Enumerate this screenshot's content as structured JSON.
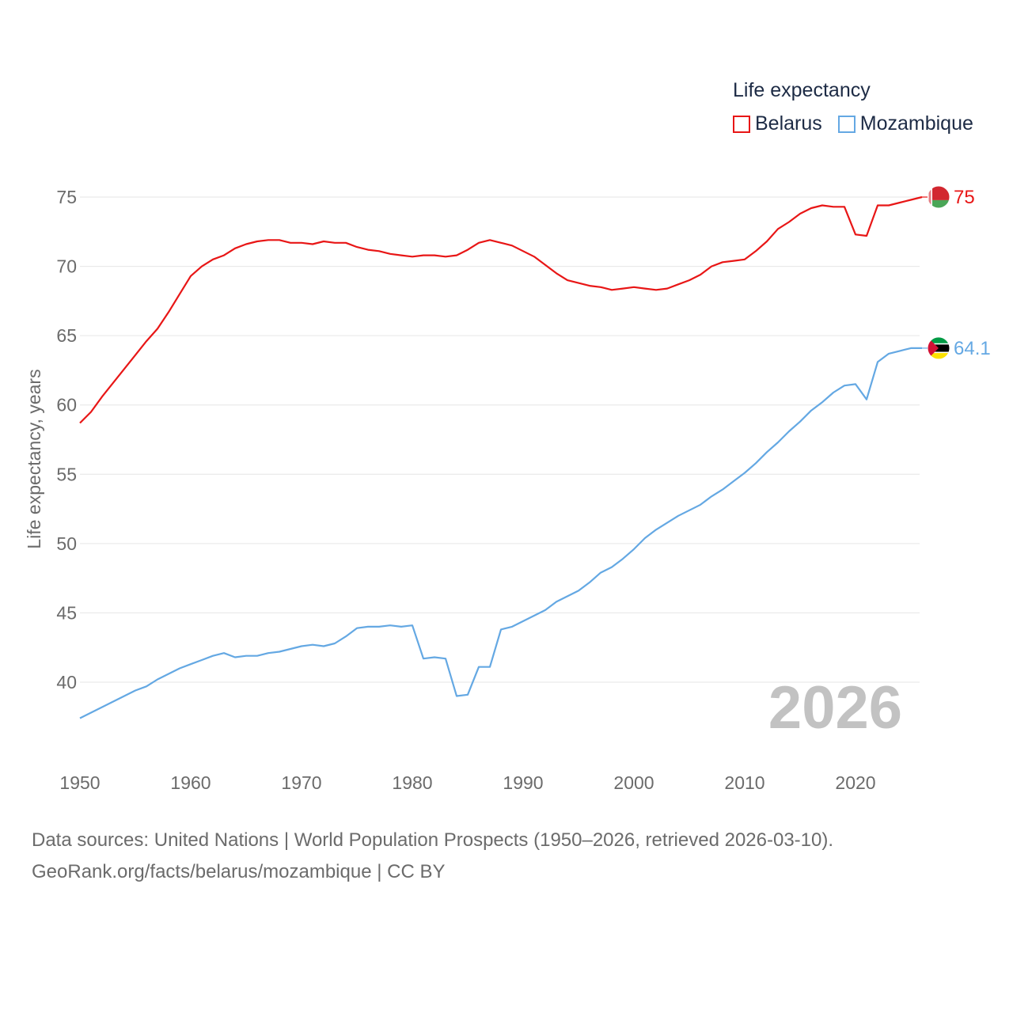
{
  "legend": {
    "title": "Life expectancy",
    "series": [
      {
        "name": "Belarus",
        "color": "#e81616"
      },
      {
        "name": "Mozambique",
        "color": "#64a8e3"
      }
    ]
  },
  "source": {
    "line1": "Data sources: United Nations | World Population Prospects (1950–2026, retrieved 2026-03-10).",
    "line2": "GeoRank.org/facts/belarus/mozambique | CC BY"
  },
  "chart_data": {
    "type": "line",
    "title": "Life expectancy",
    "xlabel": "",
    "ylabel": "Life expectancy, years",
    "year_label": "2026",
    "xlim": [
      1950,
      2026
    ],
    "ylim": [
      35,
      78
    ],
    "x_ticks": [
      1950,
      1960,
      1970,
      1980,
      1990,
      2000,
      2010,
      2020
    ],
    "y_ticks": [
      40,
      45,
      50,
      55,
      60,
      65,
      70,
      75
    ],
    "grid": true,
    "x": [
      1950,
      1951,
      1952,
      1953,
      1954,
      1955,
      1956,
      1957,
      1958,
      1959,
      1960,
      1961,
      1962,
      1963,
      1964,
      1965,
      1966,
      1967,
      1968,
      1969,
      1970,
      1971,
      1972,
      1973,
      1974,
      1975,
      1976,
      1977,
      1978,
      1979,
      1980,
      1981,
      1982,
      1983,
      1984,
      1985,
      1986,
      1987,
      1988,
      1989,
      1990,
      1991,
      1992,
      1993,
      1994,
      1995,
      1996,
      1997,
      1998,
      1999,
      2000,
      2001,
      2002,
      2003,
      2004,
      2005,
      2006,
      2007,
      2008,
      2009,
      2010,
      2011,
      2012,
      2013,
      2014,
      2015,
      2016,
      2017,
      2018,
      2019,
      2020,
      2021,
      2022,
      2023,
      2024,
      2025,
      2026
    ],
    "series": [
      {
        "name": "Belarus",
        "color": "#e81616",
        "end_label": "75",
        "flag": "belarus",
        "values": [
          58.7,
          59.5,
          60.6,
          61.6,
          62.6,
          63.6,
          64.6,
          65.5,
          66.7,
          68.0,
          69.3,
          70.0,
          70.5,
          70.8,
          71.3,
          71.6,
          71.8,
          71.9,
          71.9,
          71.7,
          71.7,
          71.6,
          71.8,
          71.7,
          71.7,
          71.4,
          71.2,
          71.1,
          70.9,
          70.8,
          70.7,
          70.8,
          70.8,
          70.7,
          70.8,
          71.2,
          71.7,
          71.9,
          71.7,
          71.5,
          71.1,
          70.7,
          70.1,
          69.5,
          69.0,
          68.8,
          68.6,
          68.5,
          68.3,
          68.4,
          68.5,
          68.4,
          68.3,
          68.4,
          68.7,
          69.0,
          69.4,
          70.0,
          70.3,
          70.4,
          70.5,
          71.1,
          71.8,
          72.7,
          73.2,
          73.8,
          74.2,
          74.4,
          74.3,
          74.3,
          72.3,
          72.2,
          74.4,
          74.4,
          74.6,
          74.8,
          75.0
        ]
      },
      {
        "name": "Mozambique",
        "color": "#64a8e3",
        "end_label": "64.1",
        "flag": "mozambique",
        "values": [
          37.4,
          37.8,
          38.2,
          38.6,
          39.0,
          39.4,
          39.7,
          40.2,
          40.6,
          41.0,
          41.3,
          41.6,
          41.9,
          42.1,
          41.8,
          41.9,
          41.9,
          42.1,
          42.2,
          42.4,
          42.6,
          42.7,
          42.6,
          42.8,
          43.3,
          43.9,
          44.0,
          44.0,
          44.1,
          44.0,
          44.1,
          41.7,
          41.8,
          41.7,
          39.0,
          39.1,
          41.1,
          41.1,
          43.8,
          44.0,
          44.4,
          44.8,
          45.2,
          45.8,
          46.2,
          46.6,
          47.2,
          47.9,
          48.3,
          48.9,
          49.6,
          50.4,
          51.0,
          51.5,
          52.0,
          52.4,
          52.8,
          53.4,
          53.9,
          54.5,
          55.1,
          55.8,
          56.6,
          57.3,
          58.1,
          58.8,
          59.6,
          60.2,
          60.9,
          61.4,
          61.5,
          60.4,
          63.1,
          63.7,
          63.9,
          64.1,
          64.1
        ]
      }
    ]
  }
}
